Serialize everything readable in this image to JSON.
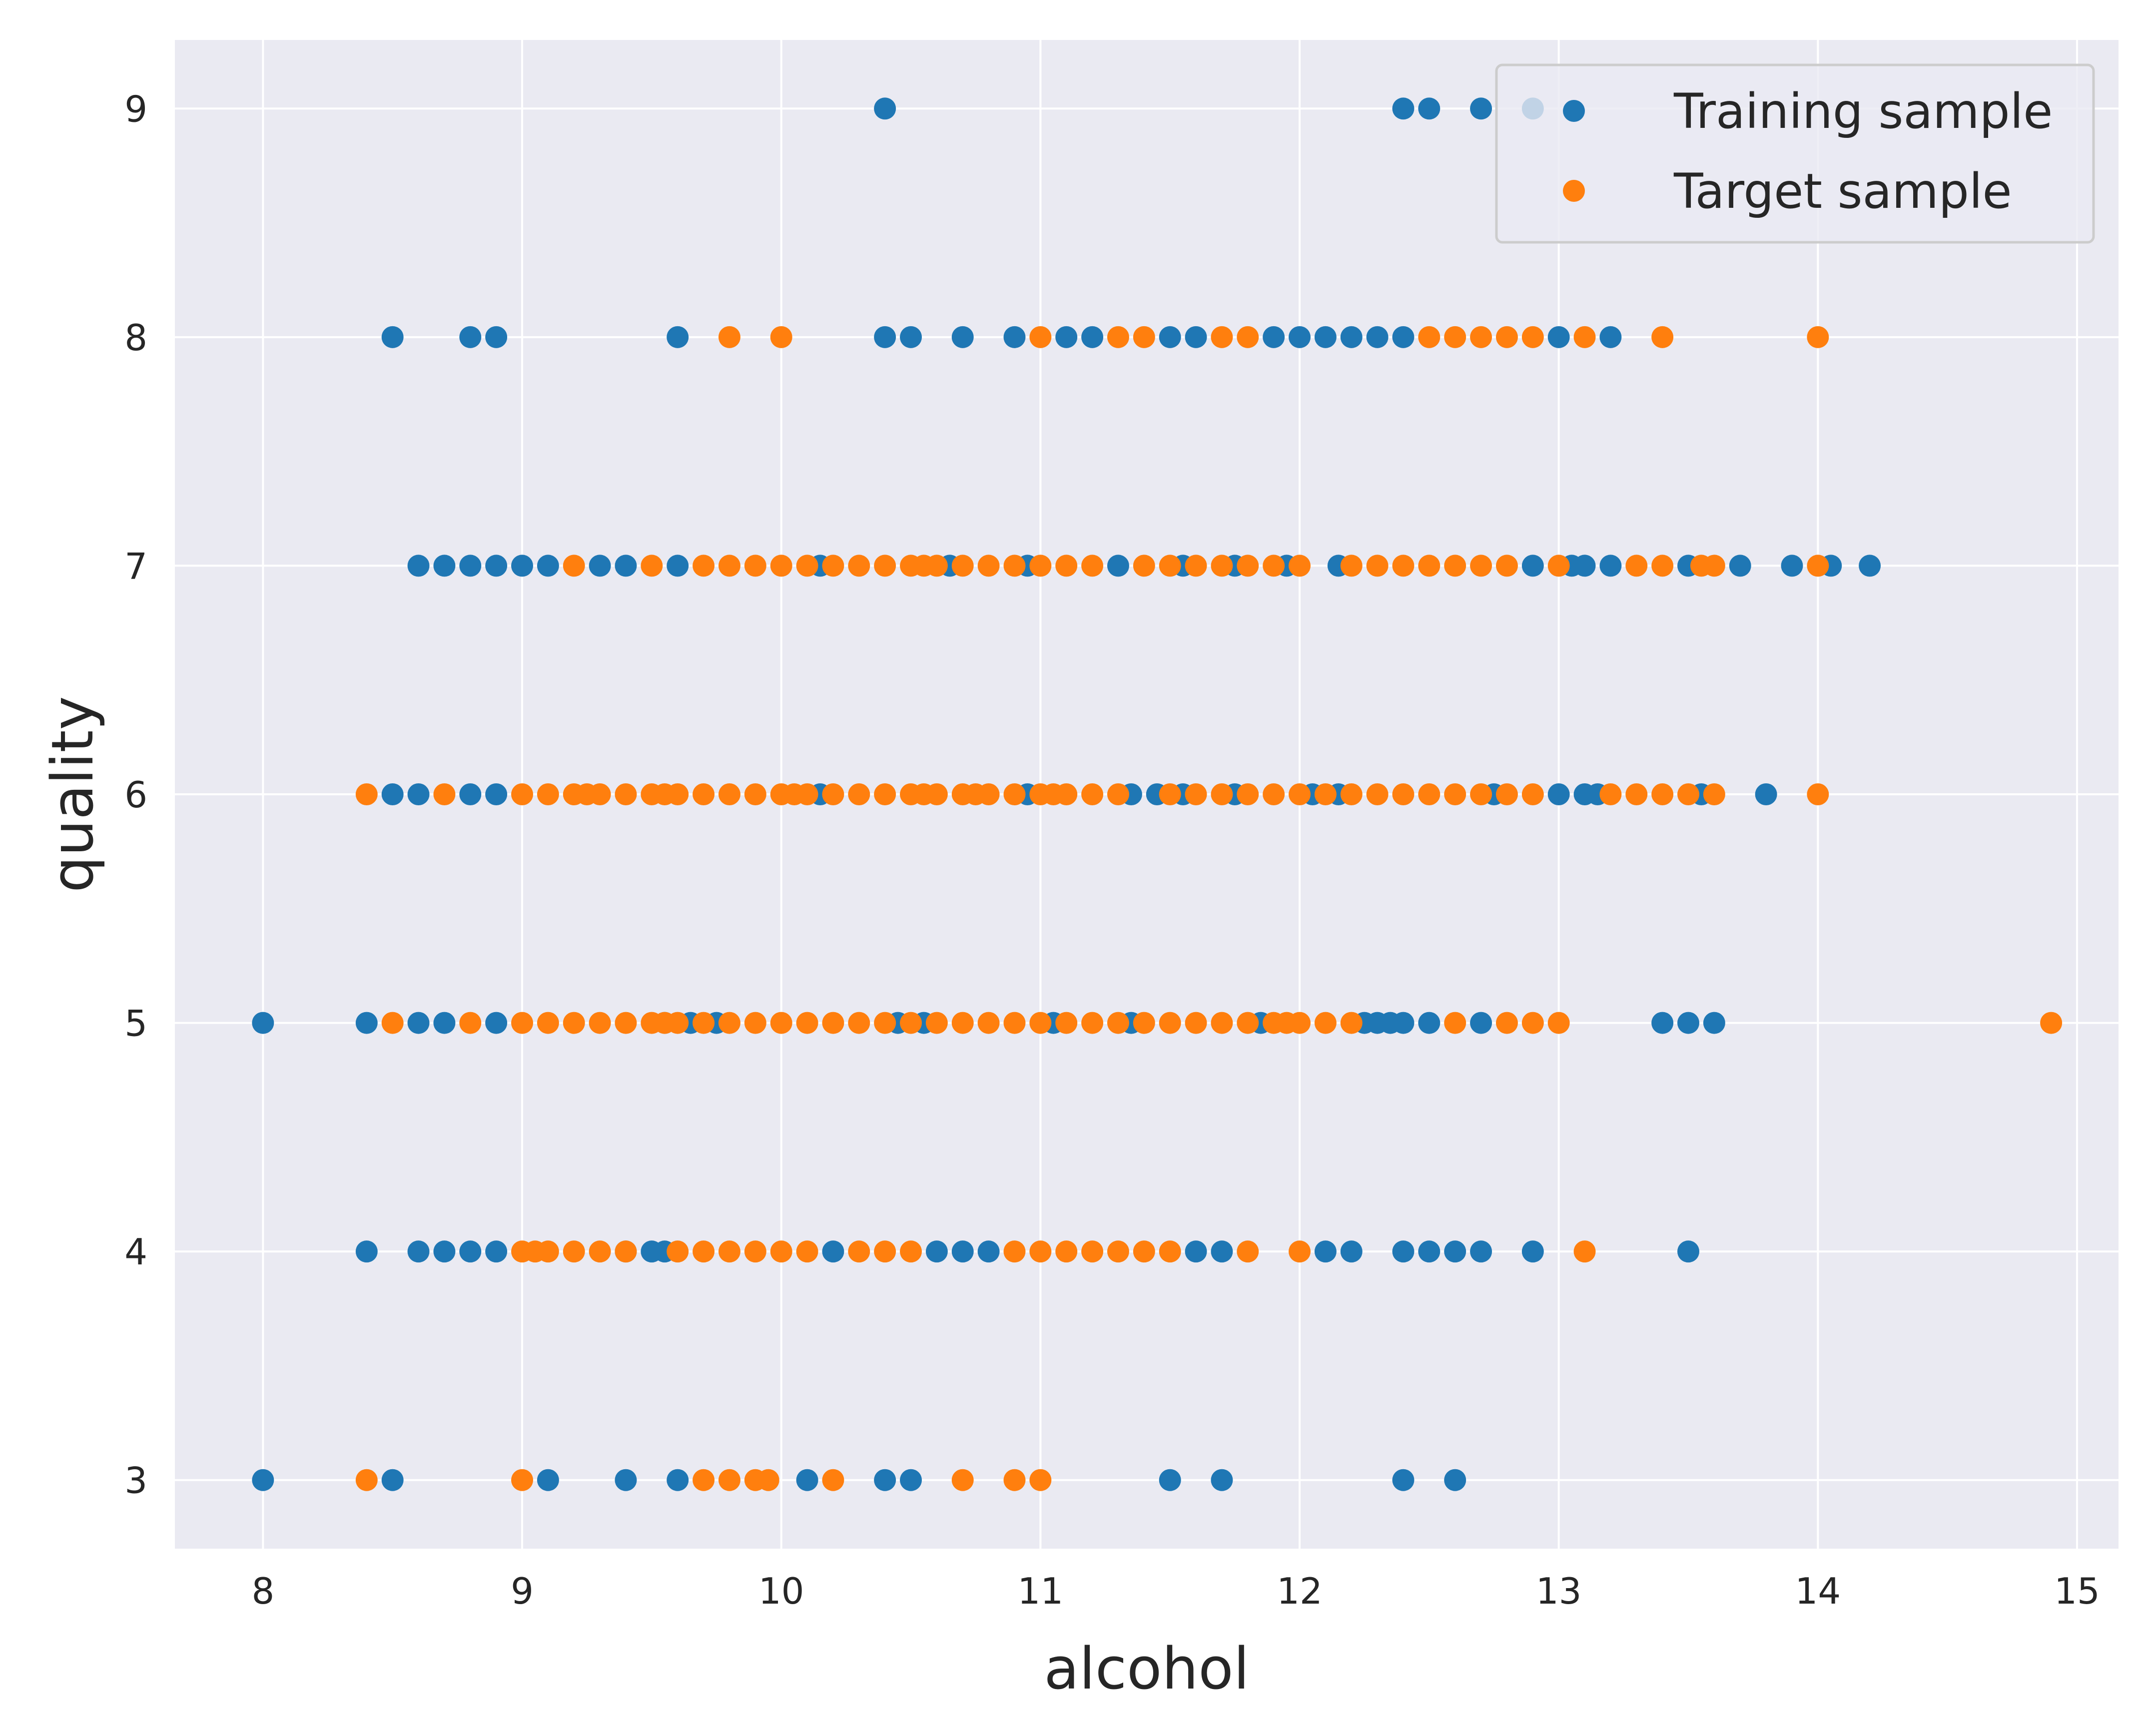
{
  "chart_data": {
    "type": "scatter",
    "xlabel": "alcohol",
    "ylabel": "quality",
    "xlim": [
      7.66,
      15.16
    ],
    "ylim": [
      2.7,
      9.3
    ],
    "xticks": [
      "8",
      "9",
      "10",
      "11",
      "12",
      "13",
      "14",
      "15"
    ],
    "yticks": [
      "3",
      "4",
      "5",
      "6",
      "7",
      "8",
      "9"
    ],
    "grid": true,
    "legend_position": "top-right",
    "series": [
      {
        "name": "Training sample",
        "color": "#1f77b4",
        "points": [
          [
            10.4,
            9
          ],
          [
            12.4,
            9
          ],
          [
            12.5,
            9
          ],
          [
            12.7,
            9
          ],
          [
            12.9,
            9
          ],
          [
            8.5,
            8
          ],
          [
            8.8,
            8
          ],
          [
            8.9,
            8
          ],
          [
            9.6,
            8
          ],
          [
            10.4,
            8
          ],
          [
            10.5,
            8
          ],
          [
            10.7,
            8
          ],
          [
            10.9,
            8
          ],
          [
            11.1,
            8
          ],
          [
            11.2,
            8
          ],
          [
            11.5,
            8
          ],
          [
            11.6,
            8
          ],
          [
            11.9,
            8
          ],
          [
            12.0,
            8
          ],
          [
            12.1,
            8
          ],
          [
            12.2,
            8
          ],
          [
            12.3,
            8
          ],
          [
            12.4,
            8
          ],
          [
            13.0,
            8
          ],
          [
            13.2,
            8
          ],
          [
            8.6,
            7
          ],
          [
            8.7,
            7
          ],
          [
            8.8,
            7
          ],
          [
            8.9,
            7
          ],
          [
            9.0,
            7
          ],
          [
            9.1,
            7
          ],
          [
            9.3,
            7
          ],
          [
            9.4,
            7
          ],
          [
            9.6,
            7
          ],
          [
            10.15,
            7
          ],
          [
            10.65,
            7
          ],
          [
            10.95,
            7
          ],
          [
            11.3,
            7
          ],
          [
            11.55,
            7
          ],
          [
            11.75,
            7
          ],
          [
            11.95,
            7
          ],
          [
            12.15,
            7
          ],
          [
            12.9,
            7
          ],
          [
            13.05,
            7
          ],
          [
            13.1,
            7
          ],
          [
            13.2,
            7
          ],
          [
            13.5,
            7
          ],
          [
            13.7,
            7
          ],
          [
            13.9,
            7
          ],
          [
            14.05,
            7
          ],
          [
            14.2,
            7
          ],
          [
            8.5,
            6
          ],
          [
            8.6,
            6
          ],
          [
            8.8,
            6
          ],
          [
            8.9,
            6
          ],
          [
            10.15,
            6
          ],
          [
            10.95,
            6
          ],
          [
            11.35,
            6
          ],
          [
            11.45,
            6
          ],
          [
            11.55,
            6
          ],
          [
            11.75,
            6
          ],
          [
            12.05,
            6
          ],
          [
            12.15,
            6
          ],
          [
            12.75,
            6
          ],
          [
            13.0,
            6
          ],
          [
            13.1,
            6
          ],
          [
            13.15,
            6
          ],
          [
            13.55,
            6
          ],
          [
            13.8,
            6
          ],
          [
            8.0,
            5
          ],
          [
            8.4,
            5
          ],
          [
            8.6,
            5
          ],
          [
            8.7,
            5
          ],
          [
            8.9,
            5
          ],
          [
            9.55,
            5
          ],
          [
            9.65,
            5
          ],
          [
            9.75,
            5
          ],
          [
            10.45,
            5
          ],
          [
            10.55,
            5
          ],
          [
            11.05,
            5
          ],
          [
            11.35,
            5
          ],
          [
            11.85,
            5
          ],
          [
            12.25,
            5
          ],
          [
            12.3,
            5
          ],
          [
            12.35,
            5
          ],
          [
            12.4,
            5
          ],
          [
            12.5,
            5
          ],
          [
            12.7,
            5
          ],
          [
            13.4,
            5
          ],
          [
            13.5,
            5
          ],
          [
            13.6,
            5
          ],
          [
            8.4,
            4
          ],
          [
            8.6,
            4
          ],
          [
            8.7,
            4
          ],
          [
            8.8,
            4
          ],
          [
            8.9,
            4
          ],
          [
            9.4,
            4
          ],
          [
            9.5,
            4
          ],
          [
            9.55,
            4
          ],
          [
            10.2,
            4
          ],
          [
            10.6,
            4
          ],
          [
            10.7,
            4
          ],
          [
            10.8,
            4
          ],
          [
            11.6,
            4
          ],
          [
            11.7,
            4
          ],
          [
            12.1,
            4
          ],
          [
            12.2,
            4
          ],
          [
            12.4,
            4
          ],
          [
            12.5,
            4
          ],
          [
            12.6,
            4
          ],
          [
            12.7,
            4
          ],
          [
            12.9,
            4
          ],
          [
            13.5,
            4
          ],
          [
            8.0,
            3
          ],
          [
            8.5,
            3
          ],
          [
            9.1,
            3
          ],
          [
            9.4,
            3
          ],
          [
            9.6,
            3
          ],
          [
            10.1,
            3
          ],
          [
            10.4,
            3
          ],
          [
            10.5,
            3
          ],
          [
            11.5,
            3
          ],
          [
            11.7,
            3
          ],
          [
            12.4,
            3
          ],
          [
            12.6,
            3
          ]
        ]
      },
      {
        "name": "Target sample",
        "color": "#ff7f0e",
        "points": [
          [
            9.8,
            8
          ],
          [
            10.0,
            8
          ],
          [
            11.0,
            8
          ],
          [
            11.3,
            8
          ],
          [
            11.4,
            8
          ],
          [
            11.7,
            8
          ],
          [
            11.8,
            8
          ],
          [
            12.5,
            8
          ],
          [
            12.6,
            8
          ],
          [
            12.7,
            8
          ],
          [
            12.8,
            8
          ],
          [
            12.9,
            8
          ],
          [
            13.1,
            8
          ],
          [
            13.4,
            8
          ],
          [
            14.0,
            8
          ],
          [
            9.2,
            7
          ],
          [
            9.5,
            7
          ],
          [
            9.7,
            7
          ],
          [
            9.8,
            7
          ],
          [
            9.9,
            7
          ],
          [
            10.0,
            7
          ],
          [
            10.1,
            7
          ],
          [
            10.2,
            7
          ],
          [
            10.3,
            7
          ],
          [
            10.4,
            7
          ],
          [
            10.5,
            7
          ],
          [
            10.55,
            7
          ],
          [
            10.6,
            7
          ],
          [
            10.7,
            7
          ],
          [
            10.8,
            7
          ],
          [
            10.9,
            7
          ],
          [
            11.0,
            7
          ],
          [
            11.1,
            7
          ],
          [
            11.2,
            7
          ],
          [
            11.4,
            7
          ],
          [
            11.5,
            7
          ],
          [
            11.6,
            7
          ],
          [
            11.7,
            7
          ],
          [
            11.8,
            7
          ],
          [
            11.9,
            7
          ],
          [
            12.0,
            7
          ],
          [
            12.2,
            7
          ],
          [
            12.3,
            7
          ],
          [
            12.4,
            7
          ],
          [
            12.5,
            7
          ],
          [
            12.6,
            7
          ],
          [
            12.7,
            7
          ],
          [
            12.8,
            7
          ],
          [
            13.0,
            7
          ],
          [
            13.3,
            7
          ],
          [
            13.4,
            7
          ],
          [
            13.55,
            7
          ],
          [
            13.6,
            7
          ],
          [
            14.0,
            7
          ],
          [
            8.4,
            6
          ],
          [
            8.7,
            6
          ],
          [
            9.0,
            6
          ],
          [
            9.1,
            6
          ],
          [
            9.2,
            6
          ],
          [
            9.25,
            6
          ],
          [
            9.3,
            6
          ],
          [
            9.4,
            6
          ],
          [
            9.5,
            6
          ],
          [
            9.55,
            6
          ],
          [
            9.6,
            6
          ],
          [
            9.7,
            6
          ],
          [
            9.8,
            6
          ],
          [
            9.9,
            6
          ],
          [
            10.0,
            6
          ],
          [
            10.05,
            6
          ],
          [
            10.1,
            6
          ],
          [
            10.2,
            6
          ],
          [
            10.3,
            6
          ],
          [
            10.4,
            6
          ],
          [
            10.5,
            6
          ],
          [
            10.55,
            6
          ],
          [
            10.6,
            6
          ],
          [
            10.7,
            6
          ],
          [
            10.75,
            6
          ],
          [
            10.8,
            6
          ],
          [
            10.9,
            6
          ],
          [
            11.0,
            6
          ],
          [
            11.05,
            6
          ],
          [
            11.1,
            6
          ],
          [
            11.2,
            6
          ],
          [
            11.3,
            6
          ],
          [
            11.5,
            6
          ],
          [
            11.6,
            6
          ],
          [
            11.7,
            6
          ],
          [
            11.8,
            6
          ],
          [
            11.9,
            6
          ],
          [
            12.0,
            6
          ],
          [
            12.1,
            6
          ],
          [
            12.2,
            6
          ],
          [
            12.3,
            6
          ],
          [
            12.4,
            6
          ],
          [
            12.5,
            6
          ],
          [
            12.6,
            6
          ],
          [
            12.7,
            6
          ],
          [
            12.8,
            6
          ],
          [
            12.9,
            6
          ],
          [
            13.2,
            6
          ],
          [
            13.3,
            6
          ],
          [
            13.4,
            6
          ],
          [
            13.5,
            6
          ],
          [
            13.6,
            6
          ],
          [
            14.0,
            6
          ],
          [
            8.5,
            5
          ],
          [
            8.8,
            5
          ],
          [
            9.0,
            5
          ],
          [
            9.1,
            5
          ],
          [
            9.2,
            5
          ],
          [
            9.3,
            5
          ],
          [
            9.4,
            5
          ],
          [
            9.5,
            5
          ],
          [
            9.55,
            5
          ],
          [
            9.6,
            5
          ],
          [
            9.7,
            5
          ],
          [
            9.8,
            5
          ],
          [
            9.9,
            5
          ],
          [
            10.0,
            5
          ],
          [
            10.1,
            5
          ],
          [
            10.2,
            5
          ],
          [
            10.3,
            5
          ],
          [
            10.4,
            5
          ],
          [
            10.5,
            5
          ],
          [
            10.6,
            5
          ],
          [
            10.7,
            5
          ],
          [
            10.8,
            5
          ],
          [
            10.9,
            5
          ],
          [
            11.0,
            5
          ],
          [
            11.1,
            5
          ],
          [
            11.2,
            5
          ],
          [
            11.3,
            5
          ],
          [
            11.4,
            5
          ],
          [
            11.5,
            5
          ],
          [
            11.6,
            5
          ],
          [
            11.7,
            5
          ],
          [
            11.8,
            5
          ],
          [
            11.9,
            5
          ],
          [
            11.95,
            5
          ],
          [
            12.0,
            5
          ],
          [
            12.1,
            5
          ],
          [
            12.2,
            5
          ],
          [
            12.6,
            5
          ],
          [
            12.8,
            5
          ],
          [
            12.9,
            5
          ],
          [
            13.0,
            5
          ],
          [
            14.9,
            5
          ],
          [
            9.0,
            4
          ],
          [
            9.05,
            4
          ],
          [
            9.1,
            4
          ],
          [
            9.2,
            4
          ],
          [
            9.3,
            4
          ],
          [
            9.4,
            4
          ],
          [
            9.6,
            4
          ],
          [
            9.7,
            4
          ],
          [
            9.8,
            4
          ],
          [
            9.9,
            4
          ],
          [
            10.0,
            4
          ],
          [
            10.1,
            4
          ],
          [
            10.3,
            4
          ],
          [
            10.4,
            4
          ],
          [
            10.5,
            4
          ],
          [
            10.9,
            4
          ],
          [
            11.0,
            4
          ],
          [
            11.1,
            4
          ],
          [
            11.2,
            4
          ],
          [
            11.3,
            4
          ],
          [
            11.4,
            4
          ],
          [
            11.5,
            4
          ],
          [
            11.8,
            4
          ],
          [
            12.0,
            4
          ],
          [
            13.1,
            4
          ],
          [
            8.4,
            3
          ],
          [
            9.0,
            3
          ],
          [
            9.7,
            3
          ],
          [
            9.8,
            3
          ],
          [
            9.9,
            3
          ],
          [
            9.95,
            3
          ],
          [
            10.2,
            3
          ],
          [
            10.7,
            3
          ],
          [
            10.9,
            3
          ],
          [
            11.0,
            3
          ]
        ]
      }
    ]
  }
}
